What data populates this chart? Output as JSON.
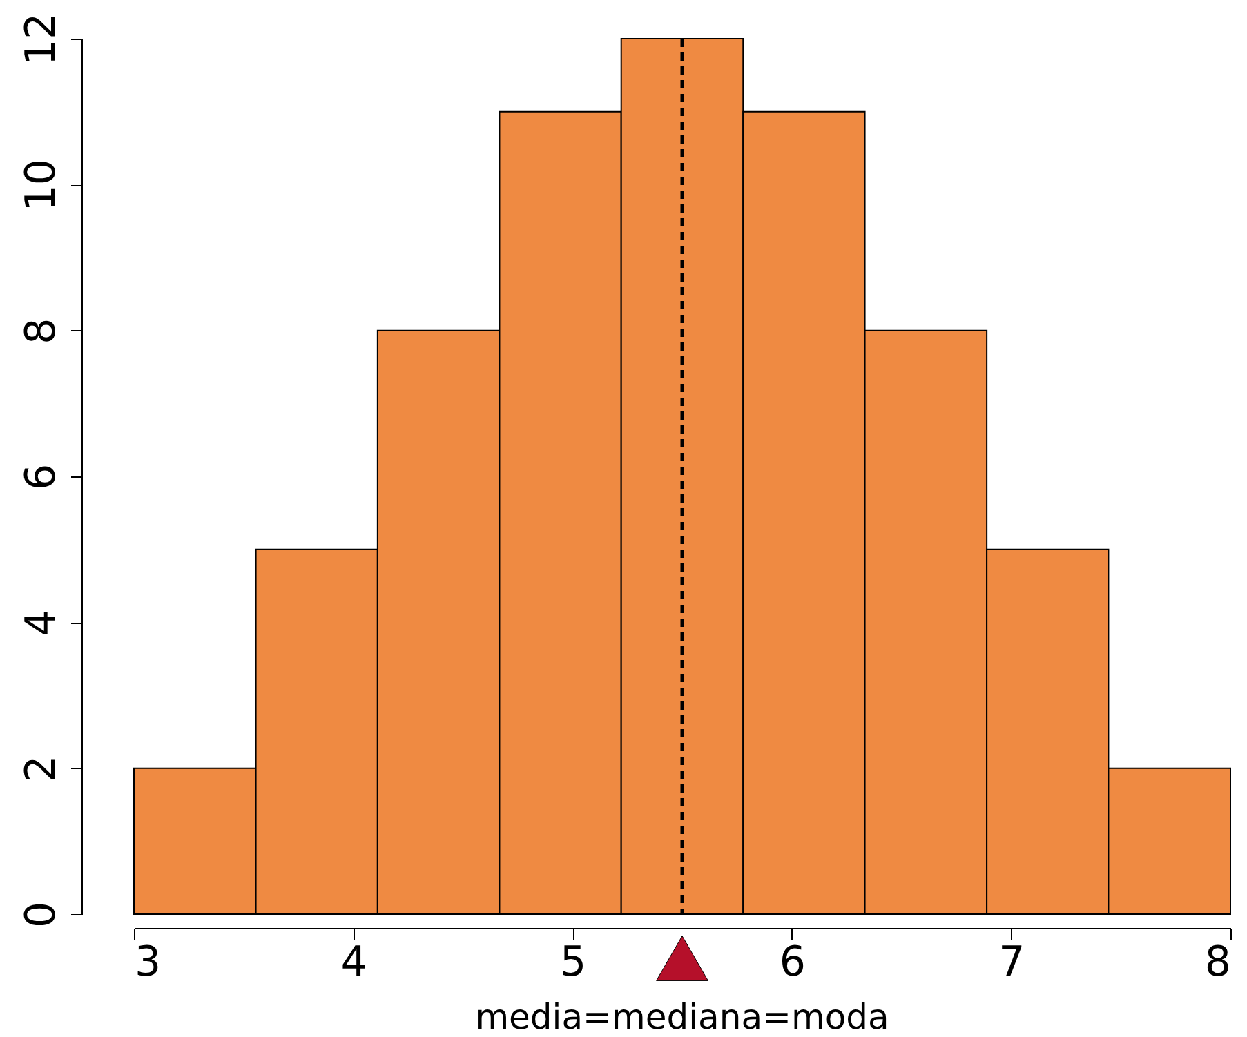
{
  "chart_data": {
    "type": "histogram",
    "bins": [
      3,
      3.556,
      4.111,
      4.667,
      5.222,
      5.778,
      6.333,
      6.889,
      7.444,
      8
    ],
    "values": [
      2,
      5,
      8,
      11,
      12,
      11,
      8,
      5,
      2
    ],
    "color": "#ef8a42",
    "xlim": [
      3,
      8
    ],
    "xticks": [
      3,
      4,
      5,
      6,
      7,
      8
    ],
    "ylim": [
      0,
      12
    ],
    "yticks": [
      0,
      2,
      4,
      6,
      8,
      10,
      12
    ],
    "grid": false,
    "ref_lines": [
      {
        "axis": "x",
        "value": 5.5,
        "color": "#000000",
        "line_style": "dashed"
      }
    ],
    "annotations": [
      "media=mediana=moda"
    ]
  }
}
